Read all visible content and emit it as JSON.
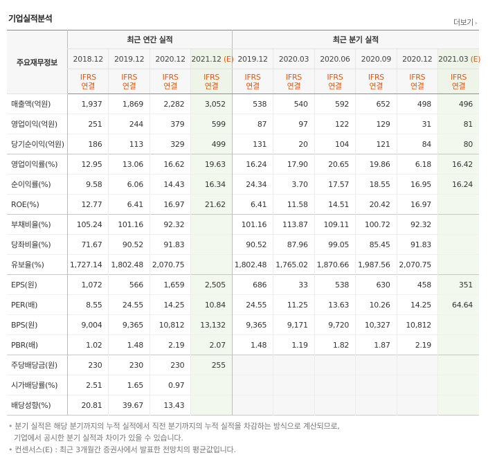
{
  "title": "기업실적분석",
  "more": "더보기",
  "label_header": "주요재무정보",
  "annual_header": "최근 연간 실적",
  "quarter_header": "최근 분기 실적",
  "annual_periods": [
    "2018.12",
    "2019.12",
    "2020.12",
    "2021.12"
  ],
  "quarter_periods": [
    "2019.12",
    "2020.03",
    "2020.06",
    "2020.09",
    "2020.12",
    "2021.03"
  ],
  "estimate_mark": "(E)",
  "ifrs_top": "IFRS",
  "ifrs_bottom": "연결",
  "rows": [
    {
      "label": "매출액(억원)",
      "values": [
        "1,937",
        "1,869",
        "2,282",
        "3,052",
        "538",
        "540",
        "592",
        "652",
        "498",
        "496"
      ]
    },
    {
      "label": "영업이익(억원)",
      "values": [
        "251",
        "244",
        "379",
        "599",
        "87",
        "97",
        "122",
        "129",
        "31",
        "81"
      ]
    },
    {
      "label": "당기순이익(억원)",
      "values": [
        "186",
        "113",
        "329",
        "499",
        "131",
        "20",
        "104",
        "121",
        "84",
        "80"
      ]
    },
    {
      "label": "영업이익률(%)",
      "values": [
        "12.95",
        "13.06",
        "16.62",
        "19.63",
        "16.24",
        "17.90",
        "20.65",
        "19.86",
        "6.18",
        "16.42"
      ]
    },
    {
      "label": "순이익률(%)",
      "values": [
        "9.58",
        "6.06",
        "14.43",
        "16.34",
        "24.34",
        "3.70",
        "17.57",
        "18.55",
        "16.95",
        "16.24"
      ]
    },
    {
      "label": "ROE(%)",
      "values": [
        "12.77",
        "6.41",
        "16.97",
        "21.62",
        "6.41",
        "11.58",
        "14.51",
        "20.42",
        "16.97",
        ""
      ]
    },
    {
      "label": "부채비율(%)",
      "values": [
        "105.24",
        "101.16",
        "92.32",
        "",
        "101.16",
        "113.87",
        "109.11",
        "100.72",
        "92.32",
        ""
      ]
    },
    {
      "label": "당좌비율(%)",
      "values": [
        "71.67",
        "90.52",
        "91.83",
        "",
        "90.52",
        "87.96",
        "99.05",
        "85.45",
        "91.83",
        ""
      ]
    },
    {
      "label": "유보율(%)",
      "values": [
        "1,727.14",
        "1,802.48",
        "2,070.75",
        "",
        "1,802.48",
        "1,765.02",
        "1,870.66",
        "1,987.56",
        "2,070.75",
        ""
      ]
    },
    {
      "label": "EPS(원)",
      "values": [
        "1,072",
        "566",
        "1,659",
        "2,505",
        "686",
        "33",
        "538",
        "630",
        "458",
        "351"
      ]
    },
    {
      "label": "PER(배)",
      "values": [
        "8.55",
        "24.55",
        "14.25",
        "10.84",
        "24.55",
        "11.25",
        "13.63",
        "10.26",
        "14.25",
        "64.64"
      ]
    },
    {
      "label": "BPS(원)",
      "values": [
        "9,004",
        "9,365",
        "10,812",
        "13,132",
        "9,365",
        "9,171",
        "9,720",
        "10,327",
        "10,812",
        ""
      ]
    },
    {
      "label": "PBR(배)",
      "values": [
        "1.02",
        "1.48",
        "2.19",
        "2.07",
        "1.48",
        "1.19",
        "1.82",
        "1.87",
        "2.19",
        ""
      ]
    },
    {
      "label": "주당배당금(원)",
      "values": [
        "230",
        "230",
        "230",
        "255",
        "",
        "",
        "",
        "",
        "",
        ""
      ]
    },
    {
      "label": "시가배당률(%)",
      "values": [
        "2.51",
        "1.65",
        "0.97",
        "",
        "",
        "",
        "",
        "",
        "",
        ""
      ]
    },
    {
      "label": "배당성향(%)",
      "values": [
        "20.81",
        "39.67",
        "13.43",
        "",
        "",
        "",
        "",
        "",
        "",
        ""
      ]
    }
  ],
  "notes": [
    "분기 실적은 해당 분기까지의 누적 실적에서 직전 분기까지의 누적 실적을 차감하는 방식으로 계산되므로,",
    "기업에서 공시한 분기 실적과 차이가 있을 수 있습니다.",
    "컨센서스(E) : 최근 3개월간 증권사에서 발표한 전망치의 평균값입니다."
  ]
}
